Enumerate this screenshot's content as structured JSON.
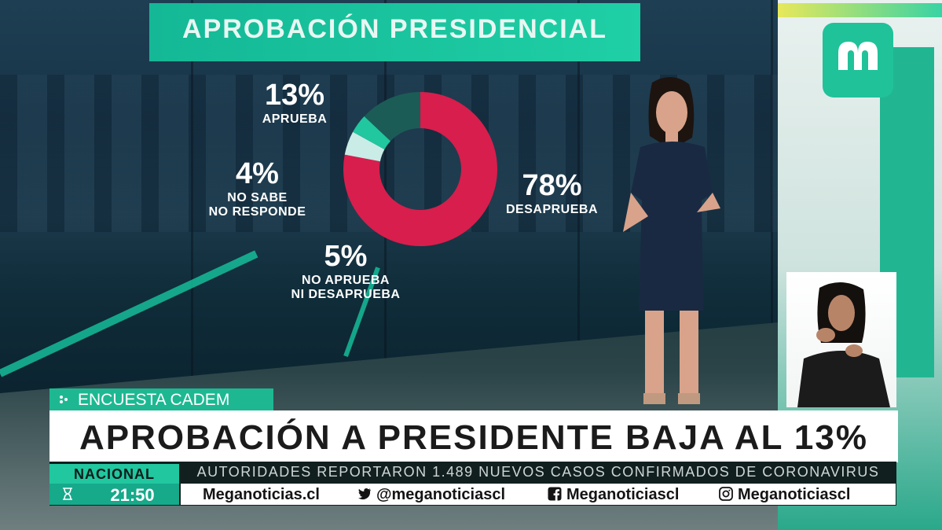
{
  "graphic": {
    "title": "APROBACIÓN PRESIDENCIAL",
    "stats": [
      {
        "pct": "13%",
        "label": "APRUEBA"
      },
      {
        "pct": "4%",
        "label_1": "NO SABE",
        "label_2": "NO RESPONDE"
      },
      {
        "pct": "5%",
        "label_1": "NO APRUEBA",
        "label_2": "NI DESAPRUEBA"
      },
      {
        "pct": "78%",
        "label": "DESAPRUEBA"
      }
    ]
  },
  "chart_data": {
    "type": "pie",
    "categories": [
      "APRUEBA",
      "NO SABE NO RESPONDE",
      "NO APRUEBA NI DESAPRUEBA",
      "DESAPRUEBA"
    ],
    "values": [
      13,
      4,
      5,
      78
    ],
    "colors": [
      "#1b5c57",
      "#21c79f",
      "#c9ece6",
      "#d81e4c"
    ]
  },
  "lower_third": {
    "source_badge": "ENCUESTA CADEM",
    "headline": "APROBACIÓN A PRESIDENTE BAJA AL 13%",
    "section": "NACIONAL",
    "time": "21:50",
    "ticker": "AUTORIDADES REPORTARON 1.489 NUEVOS CASOS CONFIRMADOS DE CORONAVIRUS",
    "social": {
      "website": "Meganoticias.cl",
      "twitter": "@meganoticiascl",
      "facebook": "Meganoticiascl",
      "instagram": "Meganoticiascl"
    }
  },
  "icons": [
    "mega-logo-icon",
    "twitter-icon",
    "facebook-icon",
    "instagram-icon",
    "hourglass-icon",
    "dots-icon"
  ],
  "colors": {
    "accent_green": "#1fcfa5",
    "disapprove_red": "#d81e4c"
  }
}
